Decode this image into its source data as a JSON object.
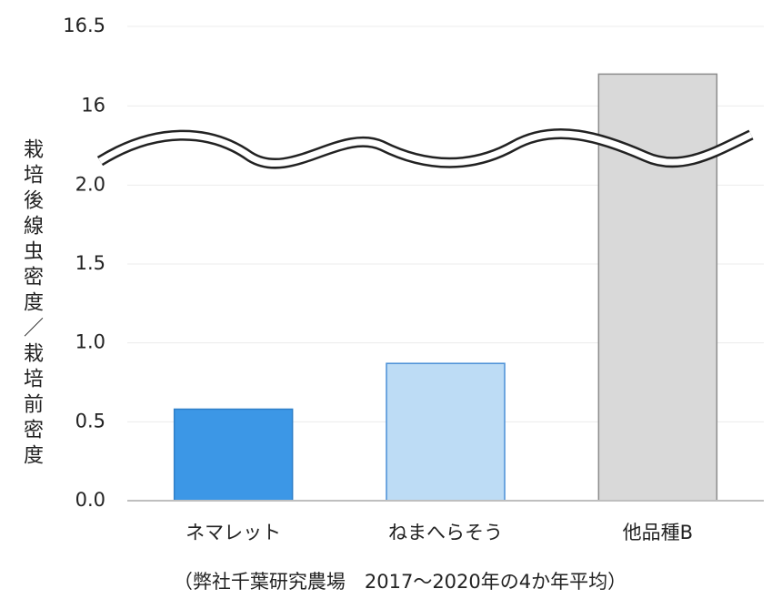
{
  "chart_data": {
    "type": "bar",
    "y_label": "栽培後線虫密度／栽培前密度",
    "note": "（弊社千葉研究農場　2017～2020年の4か年平均）",
    "categories": [
      "ネマレット",
      "ねまへらそう",
      "他品種B"
    ],
    "values": [
      0.58,
      0.87,
      16.2
    ],
    "colors": [
      "#3c97e6",
      "#bddcf5",
      "#d9d9d9"
    ],
    "edge_colors": [
      "#2f7fc8",
      "#4a8fd6",
      "#8c8c8c"
    ],
    "ylim": [
      0,
      16.5
    ],
    "ybreak": [
      2.25,
      15.75
    ],
    "yticks": [
      {
        "value": 0,
        "label": "0.0"
      },
      0.5,
      {
        "value": 1,
        "label": "1.0"
      },
      1.5,
      {
        "value": 2,
        "label": "2.0"
      },
      16,
      16.5
    ],
    "grid": true
  }
}
